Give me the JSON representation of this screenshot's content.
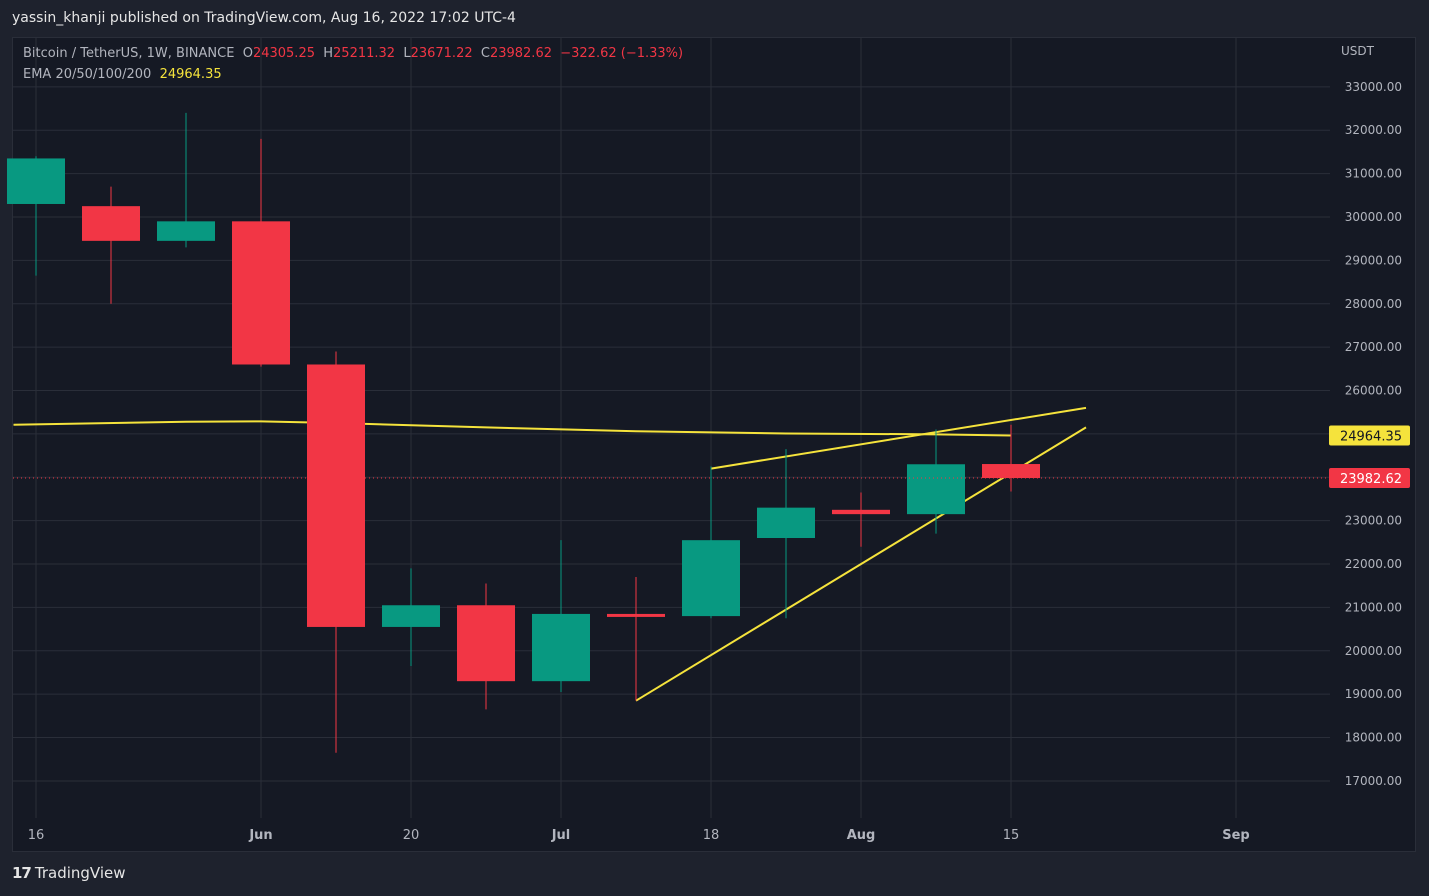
{
  "header": {
    "publisher_text": "yassin_khanji published on TradingView.com, Aug 16, 2022 17:02 UTC-4"
  },
  "legend": {
    "symbol": "Bitcoin / TetherUS, 1W, BINANCE",
    "o_label": "O",
    "o_value": "24305.25",
    "h_label": "H",
    "h_value": "25211.32",
    "l_label": "L",
    "l_value": "23671.22",
    "c_label": "C",
    "c_value": "23982.62",
    "change": "−322.62 (−1.33%)",
    "ema_label": "EMA 20/50/100/200",
    "ema_value": "24964.35"
  },
  "footer": {
    "brand": "TradingView"
  },
  "colors": {
    "up": "#089981",
    "down": "#f23645",
    "ema": "#f5e33c",
    "trendline": "#f5e33c",
    "grid": "#2a2e39",
    "background": "#151924"
  },
  "chart_data": {
    "type": "candlestick",
    "currency_label": "USDT",
    "ylim": [
      16300,
      33600
    ],
    "y_ticks": [
      17000,
      18000,
      19000,
      20000,
      21000,
      22000,
      23000,
      24000,
      25000,
      26000,
      27000,
      28000,
      29000,
      30000,
      31000,
      32000,
      33000
    ],
    "y_tick_labels": [
      "17000.00",
      "18000.00",
      "19000.00",
      "20000.00",
      "21000.00",
      "22000.00",
      "23000.00",
      "24000.00",
      "25000.00",
      "26000.00",
      "27000.00",
      "28000.00",
      "29000.00",
      "30000.00",
      "31000.00",
      "32000.00",
      "33000.00"
    ],
    "x_ticks": [
      {
        "label": "16",
        "week": 0
      },
      {
        "label": "Jun",
        "week": 3
      },
      {
        "label": "20",
        "week": 5
      },
      {
        "label": "Jul",
        "week": 7
      },
      {
        "label": "18",
        "week": 9
      },
      {
        "label": "Aug",
        "week": 11
      },
      {
        "label": "15",
        "week": 13
      },
      {
        "label": "Sep",
        "week": 16
      }
    ],
    "candles": [
      {
        "week": 0,
        "open": 30300,
        "high": 31400,
        "low": 28650,
        "close": 31350
      },
      {
        "week": 1,
        "open": 30250,
        "high": 30700,
        "low": 28000,
        "close": 29450
      },
      {
        "week": 2,
        "open": 29450,
        "high": 32400,
        "low": 29300,
        "close": 29900
      },
      {
        "week": 3,
        "open": 29900,
        "high": 31800,
        "low": 26550,
        "close": 26600
      },
      {
        "week": 4,
        "open": 26600,
        "high": 26900,
        "low": 17650,
        "close": 20550
      },
      {
        "week": 5,
        "open": 20550,
        "high": 21900,
        "low": 19650,
        "close": 21050
      },
      {
        "week": 6,
        "open": 21050,
        "high": 21550,
        "low": 18650,
        "close": 19300
      },
      {
        "week": 7,
        "open": 19300,
        "high": 22550,
        "low": 19050,
        "close": 20850
      },
      {
        "week": 8,
        "open": 20850,
        "high": 21700,
        "low": 18850,
        "close": 20800
      },
      {
        "week": 9,
        "open": 20800,
        "high": 24250,
        "low": 20750,
        "close": 22550
      },
      {
        "week": 10,
        "open": 22600,
        "high": 24650,
        "low": 20750,
        "close": 23300
      },
      {
        "week": 11,
        "open": 23250,
        "high": 23650,
        "low": 22400,
        "close": 23150
      },
      {
        "week": 12,
        "open": 23150,
        "high": 25100,
        "low": 22700,
        "close": 24300
      },
      {
        "week": 13,
        "open": 24305.25,
        "high": 25211.32,
        "low": 23671.22,
        "close": 23982.62
      }
    ],
    "ema": [
      {
        "week": -0.3,
        "value": 25210
      },
      {
        "week": 2,
        "value": 25280
      },
      {
        "week": 3,
        "value": 25290
      },
      {
        "week": 4,
        "value": 25250
      },
      {
        "week": 6,
        "value": 25150
      },
      {
        "week": 8,
        "value": 25060
      },
      {
        "week": 10,
        "value": 25010
      },
      {
        "week": 12,
        "value": 24990
      },
      {
        "week": 13,
        "value": 24964.35
      }
    ],
    "trendlines": [
      {
        "name": "upper",
        "points": [
          {
            "week": 9,
            "value": 24200
          },
          {
            "week": 14,
            "value": 25600
          }
        ]
      },
      {
        "name": "lower",
        "points": [
          {
            "week": 8,
            "value": 18850
          },
          {
            "week": 14,
            "value": 25150
          }
        ]
      }
    ],
    "last_price": 23982.62,
    "last_price_label": "23982.62",
    "ema_price_label": "24964.35"
  }
}
